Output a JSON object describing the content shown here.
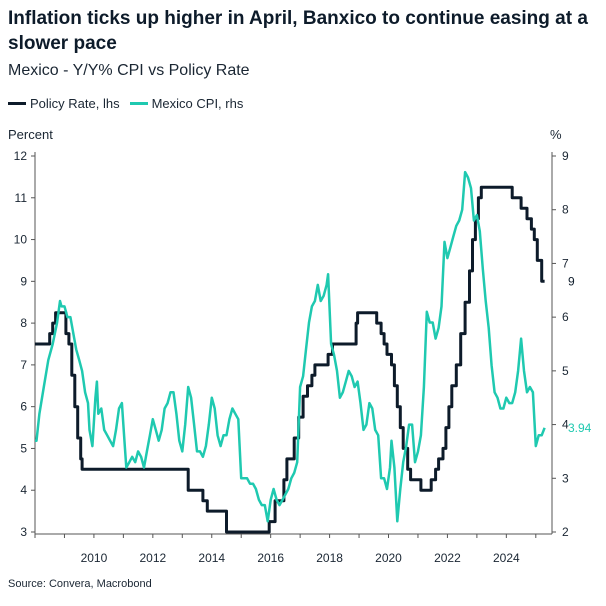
{
  "title": "Inflation ticks up higher in April, Banxico to continue easing at a slower pace",
  "subtitle": "Mexico - Y/Y% CPI vs Policy Rate",
  "source": "Source: Convera, Macrobond",
  "colors": {
    "policy": "#0d1b2a",
    "cpi": "#1fc9b0",
    "axis": "#555555"
  },
  "legend": [
    {
      "name": "Policy Rate, lhs",
      "color": "#0d1b2a"
    },
    {
      "name": "Mexico CPI, rhs",
      "color": "#1fc9b0"
    }
  ],
  "chart_data": {
    "type": "line",
    "ylabel_left": "Percent",
    "ylabel_right": "%",
    "ylim_left": [
      3,
      12
    ],
    "ylim_right": [
      2,
      9
    ],
    "x_ticks": [
      2010,
      2012,
      2014,
      2016,
      2018,
      2020,
      2022,
      2024
    ],
    "y_ticks_left": [
      3,
      4,
      5,
      6,
      7,
      8,
      9,
      10,
      11,
      12
    ],
    "y_ticks_right": [
      2,
      3,
      4,
      5,
      6,
      7,
      8,
      9
    ],
    "end_labels": {
      "policy": "9",
      "cpi": "3.94"
    },
    "series": [
      {
        "name": "Policy Rate, lhs",
        "axis": "left",
        "step": true,
        "points": [
          [
            2008.0,
            7.5
          ],
          [
            2008.5,
            7.75
          ],
          [
            2008.6,
            8.0
          ],
          [
            2008.7,
            8.25
          ],
          [
            2009.05,
            7.75
          ],
          [
            2009.15,
            7.5
          ],
          [
            2009.25,
            6.75
          ],
          [
            2009.35,
            6.0
          ],
          [
            2009.45,
            5.25
          ],
          [
            2009.55,
            4.75
          ],
          [
            2009.6,
            4.5
          ],
          [
            2013.2,
            4.0
          ],
          [
            2013.7,
            3.75
          ],
          [
            2013.85,
            3.5
          ],
          [
            2014.5,
            3.0
          ],
          [
            2015.95,
            3.25
          ],
          [
            2016.15,
            3.75
          ],
          [
            2016.45,
            4.25
          ],
          [
            2016.55,
            4.75
          ],
          [
            2016.8,
            5.25
          ],
          [
            2016.95,
            5.75
          ],
          [
            2017.1,
            6.25
          ],
          [
            2017.25,
            6.5
          ],
          [
            2017.4,
            6.75
          ],
          [
            2017.5,
            7.0
          ],
          [
            2017.95,
            7.25
          ],
          [
            2018.1,
            7.5
          ],
          [
            2018.9,
            8.0
          ],
          [
            2018.95,
            8.25
          ],
          [
            2019.6,
            8.0
          ],
          [
            2019.75,
            7.75
          ],
          [
            2019.85,
            7.5
          ],
          [
            2019.95,
            7.25
          ],
          [
            2020.1,
            7.0
          ],
          [
            2020.2,
            6.5
          ],
          [
            2020.3,
            6.0
          ],
          [
            2020.4,
            5.5
          ],
          [
            2020.5,
            5.0
          ],
          [
            2020.65,
            4.5
          ],
          [
            2020.75,
            4.25
          ],
          [
            2021.1,
            4.0
          ],
          [
            2021.45,
            4.25
          ],
          [
            2021.6,
            4.5
          ],
          [
            2021.7,
            4.75
          ],
          [
            2021.85,
            5.0
          ],
          [
            2021.95,
            5.5
          ],
          [
            2022.05,
            6.0
          ],
          [
            2022.15,
            6.5
          ],
          [
            2022.3,
            7.0
          ],
          [
            2022.45,
            7.75
          ],
          [
            2022.6,
            8.5
          ],
          [
            2022.75,
            9.25
          ],
          [
            2022.85,
            10.0
          ],
          [
            2022.95,
            10.5
          ],
          [
            2023.05,
            11.0
          ],
          [
            2023.15,
            11.25
          ],
          [
            2024.2,
            11.0
          ],
          [
            2024.5,
            10.75
          ],
          [
            2024.7,
            10.5
          ],
          [
            2024.85,
            10.25
          ],
          [
            2024.95,
            10.0
          ],
          [
            2025.05,
            9.5
          ],
          [
            2025.2,
            9.0
          ],
          [
            2025.3,
            9.0
          ]
        ]
      },
      {
        "name": "Mexico CPI, rhs",
        "axis": "right",
        "step": false,
        "points": [
          [
            2008.0,
            3.7
          ],
          [
            2008.05,
            3.7
          ],
          [
            2008.15,
            4.2
          ],
          [
            2008.3,
            4.7
          ],
          [
            2008.45,
            5.2
          ],
          [
            2008.6,
            5.5
          ],
          [
            2008.75,
            5.9
          ],
          [
            2008.85,
            6.3
          ],
          [
            2008.9,
            6.2
          ],
          [
            2009.0,
            6.2
          ],
          [
            2009.1,
            6.0
          ],
          [
            2009.2,
            6.0
          ],
          [
            2009.3,
            5.7
          ],
          [
            2009.4,
            5.4
          ],
          [
            2009.5,
            5.2
          ],
          [
            2009.6,
            5.0
          ],
          [
            2009.7,
            4.6
          ],
          [
            2009.8,
            4.4
          ],
          [
            2009.85,
            3.9
          ],
          [
            2009.95,
            3.6
          ],
          [
            2010.05,
            4.5
          ],
          [
            2010.1,
            4.8
          ],
          [
            2010.15,
            4.2
          ],
          [
            2010.25,
            4.3
          ],
          [
            2010.35,
            3.9
          ],
          [
            2010.45,
            3.8
          ],
          [
            2010.55,
            3.7
          ],
          [
            2010.65,
            3.6
          ],
          [
            2010.75,
            3.9
          ],
          [
            2010.85,
            4.3
          ],
          [
            2010.95,
            4.4
          ],
          [
            2011.05,
            3.6
          ],
          [
            2011.1,
            3.2
          ],
          [
            2011.2,
            3.3
          ],
          [
            2011.3,
            3.4
          ],
          [
            2011.4,
            3.3
          ],
          [
            2011.5,
            3.5
          ],
          [
            2011.6,
            3.4
          ],
          [
            2011.7,
            3.2
          ],
          [
            2011.8,
            3.5
          ],
          [
            2011.9,
            3.8
          ],
          [
            2012.0,
            4.1
          ],
          [
            2012.1,
            3.9
          ],
          [
            2012.2,
            3.7
          ],
          [
            2012.3,
            3.9
          ],
          [
            2012.4,
            4.3
          ],
          [
            2012.5,
            4.4
          ],
          [
            2012.6,
            4.6
          ],
          [
            2012.7,
            4.6
          ],
          [
            2012.8,
            4.2
          ],
          [
            2012.9,
            3.7
          ],
          [
            2013.0,
            3.5
          ],
          [
            2013.1,
            4.0
          ],
          [
            2013.2,
            4.7
          ],
          [
            2013.3,
            4.5
          ],
          [
            2013.4,
            4.0
          ],
          [
            2013.5,
            3.5
          ],
          [
            2013.6,
            3.5
          ],
          [
            2013.7,
            3.4
          ],
          [
            2013.8,
            3.6
          ],
          [
            2013.9,
            4.0
          ],
          [
            2014.0,
            4.5
          ],
          [
            2014.1,
            4.3
          ],
          [
            2014.2,
            3.8
          ],
          [
            2014.3,
            3.6
          ],
          [
            2014.4,
            3.8
          ],
          [
            2014.5,
            3.8
          ],
          [
            2014.6,
            4.1
          ],
          [
            2014.7,
            4.3
          ],
          [
            2014.8,
            4.2
          ],
          [
            2014.9,
            4.1
          ],
          [
            2015.0,
            3.0
          ],
          [
            2015.1,
            3.0
          ],
          [
            2015.2,
            3.0
          ],
          [
            2015.3,
            2.9
          ],
          [
            2015.4,
            2.9
          ],
          [
            2015.5,
            2.8
          ],
          [
            2015.6,
            2.6
          ],
          [
            2015.7,
            2.5
          ],
          [
            2015.8,
            2.5
          ],
          [
            2015.9,
            2.2
          ],
          [
            2016.0,
            2.6
          ],
          [
            2016.1,
            2.8
          ],
          [
            2016.2,
            2.6
          ],
          [
            2016.3,
            2.5
          ],
          [
            2016.4,
            2.6
          ],
          [
            2016.5,
            2.7
          ],
          [
            2016.6,
            2.8
          ],
          [
            2016.7,
            3.0
          ],
          [
            2016.8,
            3.1
          ],
          [
            2016.9,
            3.3
          ],
          [
            2017.0,
            4.7
          ],
          [
            2017.1,
            4.9
          ],
          [
            2017.2,
            5.4
          ],
          [
            2017.3,
            5.9
          ],
          [
            2017.4,
            6.2
          ],
          [
            2017.5,
            6.3
          ],
          [
            2017.6,
            6.6
          ],
          [
            2017.7,
            6.3
          ],
          [
            2017.8,
            6.4
          ],
          [
            2017.9,
            6.6
          ],
          [
            2017.95,
            6.8
          ],
          [
            2018.05,
            5.5
          ],
          [
            2018.15,
            5.3
          ],
          [
            2018.25,
            5.0
          ],
          [
            2018.35,
            4.5
          ],
          [
            2018.45,
            4.6
          ],
          [
            2018.55,
            4.8
          ],
          [
            2018.65,
            5.0
          ],
          [
            2018.75,
            4.9
          ],
          [
            2018.85,
            4.7
          ],
          [
            2018.95,
            4.8
          ],
          [
            2019.05,
            4.4
          ],
          [
            2019.15,
            3.9
          ],
          [
            2019.25,
            4.0
          ],
          [
            2019.35,
            4.4
          ],
          [
            2019.45,
            4.3
          ],
          [
            2019.55,
            3.9
          ],
          [
            2019.65,
            3.8
          ],
          [
            2019.75,
            3.0
          ],
          [
            2019.85,
            3.0
          ],
          [
            2019.95,
            2.8
          ],
          [
            2020.05,
            3.2
          ],
          [
            2020.1,
            3.7
          ],
          [
            2020.2,
            3.2
          ],
          [
            2020.3,
            2.2
          ],
          [
            2020.4,
            2.8
          ],
          [
            2020.5,
            3.3
          ],
          [
            2020.6,
            3.6
          ],
          [
            2020.7,
            4.0
          ],
          [
            2020.8,
            4.0
          ],
          [
            2020.9,
            3.3
          ],
          [
            2021.0,
            3.5
          ],
          [
            2021.1,
            3.8
          ],
          [
            2021.2,
            4.7
          ],
          [
            2021.3,
            6.1
          ],
          [
            2021.4,
            5.9
          ],
          [
            2021.5,
            5.9
          ],
          [
            2021.6,
            5.6
          ],
          [
            2021.7,
            5.8
          ],
          [
            2021.8,
            6.2
          ],
          [
            2021.9,
            7.4
          ],
          [
            2022.0,
            7.1
          ],
          [
            2022.1,
            7.3
          ],
          [
            2022.2,
            7.5
          ],
          [
            2022.3,
            7.7
          ],
          [
            2022.4,
            7.8
          ],
          [
            2022.5,
            8.0
          ],
          [
            2022.6,
            8.7
          ],
          [
            2022.7,
            8.6
          ],
          [
            2022.8,
            8.4
          ],
          [
            2022.9,
            7.8
          ],
          [
            2023.0,
            7.9
          ],
          [
            2023.1,
            7.6
          ],
          [
            2023.2,
            6.9
          ],
          [
            2023.3,
            6.3
          ],
          [
            2023.4,
            5.8
          ],
          [
            2023.5,
            5.1
          ],
          [
            2023.6,
            4.6
          ],
          [
            2023.7,
            4.5
          ],
          [
            2023.8,
            4.3
          ],
          [
            2023.9,
            4.3
          ],
          [
            2024.0,
            4.5
          ],
          [
            2024.1,
            4.4
          ],
          [
            2024.2,
            4.4
          ],
          [
            2024.3,
            4.6
          ],
          [
            2024.4,
            5.0
          ],
          [
            2024.5,
            5.6
          ],
          [
            2024.6,
            5.0
          ],
          [
            2024.7,
            4.6
          ],
          [
            2024.8,
            4.7
          ],
          [
            2024.9,
            4.6
          ],
          [
            2025.0,
            3.6
          ],
          [
            2025.1,
            3.8
          ],
          [
            2025.2,
            3.8
          ],
          [
            2025.3,
            3.94
          ]
        ]
      }
    ]
  }
}
